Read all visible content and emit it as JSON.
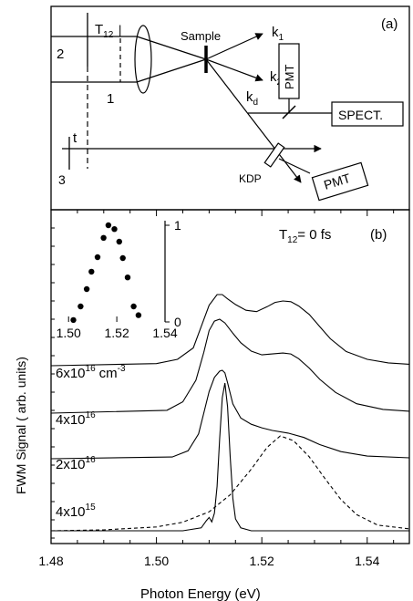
{
  "panel_a": {
    "label": "(a)",
    "beam_2": "2",
    "beam_1": "1",
    "beam_3": "3",
    "delay_T": "T",
    "delay_T_sub": "12",
    "delay_t": "t",
    "sample": "Sample",
    "k1": "k",
    "k1_sub": "1",
    "k2": "k",
    "k2_sub": "2",
    "kd": "k",
    "kd_sub": "d",
    "kdp": "KDP",
    "pmt_top": "PMT",
    "spect": "SPECT.",
    "pmt_bottom": "PMT"
  },
  "panel_b": {
    "label": "(b)",
    "delay_label_T": "T",
    "delay_label_sub": "12",
    "delay_label_value": "= 0 fs",
    "density_1_mant": "6x10",
    "density_1_exp": "16",
    "density_1_unit": "cm",
    "density_1_unit_exp": "-3",
    "density_2_mant": "4x10",
    "density_2_exp": "16",
    "density_3_mant": "2x10",
    "density_3_exp": "16",
    "density_4_mant": "4x10",
    "density_4_exp": "15"
  },
  "chart_data": [
    {
      "type": "line",
      "xlabel": "Photon Energy (eV)",
      "ylabel": "FWM Signal ( arb. units)",
      "xlim": [
        1.48,
        1.548
      ],
      "x_ticks": [
        "1.48",
        "1.50",
        "1.52",
        "1.54"
      ],
      "series": [
        {
          "name": "6x10^16 cm^-3",
          "style": "solid",
          "x": [
            1.48,
            1.5,
            1.504,
            1.507,
            1.5085,
            1.51,
            1.5115,
            1.5125,
            1.5135,
            1.515,
            1.517,
            1.519,
            1.521,
            1.5225,
            1.524,
            1.5255,
            1.527,
            1.529,
            1.531,
            1.533,
            1.536,
            1.54,
            1.544,
            1.548
          ],
          "y": [
            0.0,
            0.03,
            0.09,
            0.25,
            0.55,
            0.85,
            1.0,
            1.0,
            0.94,
            0.86,
            0.78,
            0.76,
            0.83,
            0.89,
            0.91,
            0.9,
            0.84,
            0.72,
            0.55,
            0.38,
            0.2,
            0.09,
            0.04,
            0.02
          ]
        },
        {
          "name": "4x10^16",
          "style": "solid",
          "x": [
            1.48,
            1.502,
            1.505,
            1.5075,
            1.509,
            1.51,
            1.511,
            1.512,
            1.513,
            1.5145,
            1.516,
            1.518,
            1.52,
            1.522,
            1.524,
            1.5255,
            1.527,
            1.529,
            1.531,
            1.534,
            1.538,
            1.543,
            1.548
          ],
          "y": [
            0.0,
            0.03,
            0.12,
            0.35,
            0.65,
            0.88,
            0.98,
            1.0,
            0.96,
            0.85,
            0.75,
            0.66,
            0.62,
            0.63,
            0.64,
            0.63,
            0.58,
            0.48,
            0.36,
            0.22,
            0.1,
            0.04,
            0.02
          ]
        },
        {
          "name": "2x10^16",
          "style": "solid",
          "x": [
            1.48,
            1.503,
            1.506,
            1.508,
            1.509,
            1.51,
            1.511,
            1.512,
            1.5125,
            1.513,
            1.5135,
            1.5145,
            1.516,
            1.518,
            1.52,
            1.522,
            1.525,
            1.528,
            1.531,
            1.535,
            1.54,
            1.548
          ],
          "y": [
            0.0,
            0.02,
            0.09,
            0.28,
            0.52,
            0.76,
            0.92,
            0.99,
            1.0,
            0.97,
            0.86,
            0.62,
            0.46,
            0.39,
            0.35,
            0.32,
            0.29,
            0.24,
            0.16,
            0.08,
            0.03,
            0.01
          ]
        },
        {
          "name": "4x10^15",
          "style": "solid",
          "x": [
            1.48,
            1.505,
            1.5085,
            1.5095,
            1.51,
            1.5105,
            1.511,
            1.5115,
            1.512,
            1.5125,
            1.513,
            1.5135,
            1.514,
            1.5145,
            1.515,
            1.516,
            1.518,
            1.52,
            1.525,
            1.53,
            1.54,
            1.548
          ],
          "y": [
            0.0,
            0.0,
            0.02,
            0.07,
            0.09,
            0.06,
            0.12,
            0.3,
            0.62,
            0.9,
            1.0,
            0.84,
            0.5,
            0.22,
            0.08,
            0.02,
            0.0,
            0.0,
            0.0,
            0.0,
            0.0,
            0.0
          ]
        },
        {
          "name": "4x10^15 (dashed)",
          "style": "dashed",
          "x": [
            1.48,
            1.49,
            1.5,
            1.505,
            1.51,
            1.514,
            1.518,
            1.521,
            1.5235,
            1.526,
            1.529,
            1.532,
            1.535,
            1.538,
            1.542,
            1.548
          ],
          "y": [
            0.0,
            0.01,
            0.04,
            0.09,
            0.2,
            0.38,
            0.65,
            0.88,
            1.0,
            0.95,
            0.78,
            0.55,
            0.33,
            0.17,
            0.06,
            0.02
          ]
        }
      ]
    },
    {
      "type": "scatter",
      "xlim": [
        1.495,
        1.54
      ],
      "ylim": [
        0,
        1
      ],
      "x_ticks": [
        "1.50",
        "1.52",
        "1.54"
      ],
      "y_ticks": [
        "0",
        "1"
      ],
      "series": [
        {
          "x": [
            1.502,
            1.505,
            1.5075,
            1.5095,
            1.512,
            1.5145,
            1.5165,
            1.519,
            1.521,
            1.5225,
            1.5245,
            1.527,
            1.529
          ],
          "y": [
            0.02,
            0.16,
            0.34,
            0.52,
            0.67,
            0.87,
            1.0,
            0.96,
            0.83,
            0.66,
            0.46,
            0.16,
            0.07
          ]
        }
      ]
    }
  ]
}
